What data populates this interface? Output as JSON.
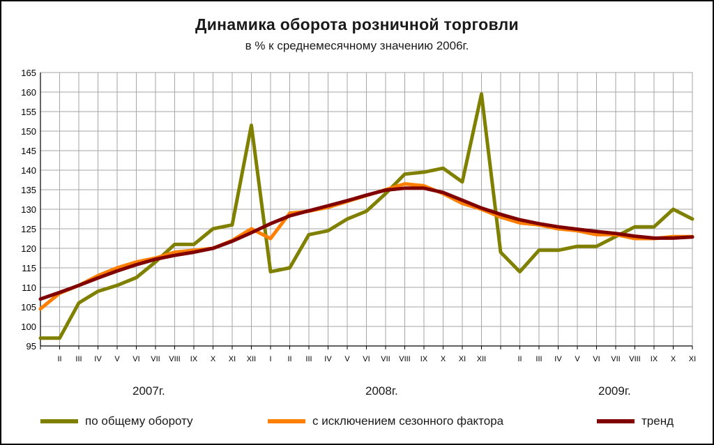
{
  "chart_data": {
    "type": "line",
    "title": "Динамика оборота розничной торговли",
    "subtitle": "в % к среднемесячному значению 2006г.",
    "ylim": [
      95,
      165
    ],
    "yticks": [
      95,
      100,
      105,
      110,
      115,
      120,
      125,
      130,
      135,
      140,
      145,
      150,
      155,
      160,
      165
    ],
    "grid": true,
    "legend_position": "bottom",
    "categories": [
      "",
      "II",
      "III",
      "IV",
      "V",
      "VI",
      "VII",
      "VIII",
      "IX",
      "X",
      "XI",
      "XII",
      "I",
      "II",
      "III",
      "IV",
      "V",
      "VI",
      "VII",
      "VIII",
      "IX",
      "X",
      "XI",
      "XII",
      "",
      "II",
      "III",
      "IV",
      "V",
      "VI",
      "VII",
      "VIII",
      "IX",
      "X",
      "XI"
    ],
    "years": [
      "2007г.",
      "2008г.",
      "2009г."
    ],
    "series": [
      {
        "name": "по общему обороту",
        "color": "#808000",
        "values": [
          97,
          97,
          106,
          109,
          110.5,
          112.5,
          116.5,
          121,
          121,
          125,
          126,
          151.5,
          114,
          115,
          123.5,
          124.5,
          127.5,
          129.5,
          134,
          139,
          139.5,
          140.5,
          137,
          159.5,
          119,
          114,
          119.5,
          119.5,
          120.5,
          120.5,
          123,
          125.5,
          125.5,
          130,
          127.5
        ]
      },
      {
        "name": "с исключением сезонного фактора",
        "color": "#ff7f00",
        "values": [
          104.5,
          108.5,
          110.5,
          113,
          115,
          116.5,
          117.5,
          119,
          119.5,
          120,
          122,
          125,
          122.5,
          129,
          129.5,
          130.5,
          132,
          133.5,
          135,
          136.5,
          136,
          134,
          131.5,
          130,
          128,
          126.5,
          126,
          125,
          124.5,
          123.5,
          123.5,
          122.5,
          122.5,
          123,
          123
        ]
      },
      {
        "name": "тренд",
        "color": "#800000",
        "values": [
          107,
          108.7,
          110.5,
          112.4,
          114.2,
          115.8,
          117.2,
          118.2,
          119,
          120,
          121.8,
          124,
          126.3,
          128.3,
          129.6,
          130.9,
          132.2,
          133.6,
          134.9,
          135.4,
          135.4,
          134.3,
          132.3,
          130.3,
          128.7,
          127.3,
          126.3,
          125.5,
          124.9,
          124.3,
          123.8,
          123.1,
          122.6,
          122.6,
          122.9
        ]
      }
    ]
  }
}
